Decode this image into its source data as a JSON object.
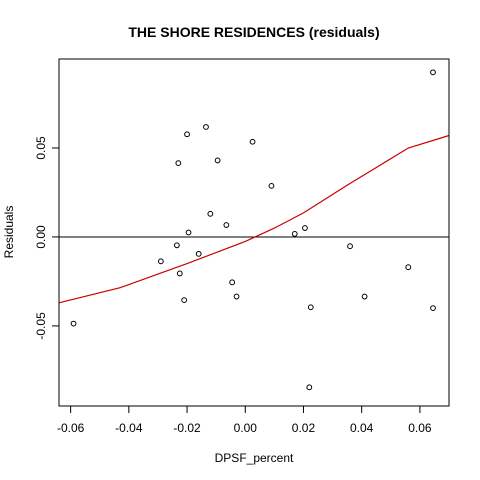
{
  "chart_data": {
    "type": "scatter",
    "title": "THE SHORE RESIDENCES (residuals)",
    "xlabel": "DPSF_percent",
    "ylabel": "Residuals",
    "xlim": [
      -0.064,
      0.07
    ],
    "ylim": [
      -0.095,
      0.1
    ],
    "x_ticks": [
      -0.06,
      -0.04,
      -0.02,
      0.0,
      0.02,
      0.04,
      0.06
    ],
    "x_tick_labels": [
      "-0.06",
      "-0.04",
      "-0.02",
      "0.00",
      "0.02",
      "0.04",
      "0.06"
    ],
    "y_ticks": [
      -0.05,
      0.0,
      0.05
    ],
    "y_tick_labels": [
      "-0.05",
      "0.00",
      "0.05"
    ],
    "reference_line_y": 0.0,
    "grid": false,
    "point_color": "#000000",
    "smooth_color": "#cc0000",
    "points": [
      {
        "x": -0.059,
        "y": -0.0487
      },
      {
        "x": -0.029,
        "y": -0.0137
      },
      {
        "x": -0.0235,
        "y": -0.0047
      },
      {
        "x": -0.023,
        "y": 0.0415
      },
      {
        "x": -0.0225,
        "y": -0.0205
      },
      {
        "x": -0.021,
        "y": -0.0355
      },
      {
        "x": -0.02,
        "y": 0.0577
      },
      {
        "x": -0.0195,
        "y": 0.0025
      },
      {
        "x": -0.016,
        "y": -0.0095
      },
      {
        "x": -0.0135,
        "y": 0.0618
      },
      {
        "x": -0.012,
        "y": 0.013
      },
      {
        "x": -0.0095,
        "y": 0.043
      },
      {
        "x": -0.0065,
        "y": 0.0067
      },
      {
        "x": -0.0045,
        "y": -0.0255
      },
      {
        "x": -0.003,
        "y": -0.0335
      },
      {
        "x": 0.0025,
        "y": 0.0535
      },
      {
        "x": 0.009,
        "y": 0.0287
      },
      {
        "x": 0.017,
        "y": 0.0017
      },
      {
        "x": 0.0205,
        "y": 0.005
      },
      {
        "x": 0.022,
        "y": -0.0845
      },
      {
        "x": 0.0225,
        "y": -0.0395
      },
      {
        "x": 0.036,
        "y": -0.0052
      },
      {
        "x": 0.041,
        "y": -0.0335
      },
      {
        "x": 0.056,
        "y": -0.017
      },
      {
        "x": 0.0645,
        "y": 0.0925
      },
      {
        "x": 0.0645,
        "y": -0.04
      }
    ],
    "smooth_line": [
      {
        "x": -0.064,
        "y": -0.037
      },
      {
        "x": -0.043,
        "y": -0.0285
      },
      {
        "x": -0.02,
        "y": -0.015
      },
      {
        "x": 0.0,
        "y": -0.0025
      },
      {
        "x": 0.01,
        "y": 0.005
      },
      {
        "x": 0.02,
        "y": 0.0135
      },
      {
        "x": 0.035,
        "y": 0.029
      },
      {
        "x": 0.056,
        "y": 0.05
      },
      {
        "x": 0.07,
        "y": 0.057
      }
    ]
  }
}
